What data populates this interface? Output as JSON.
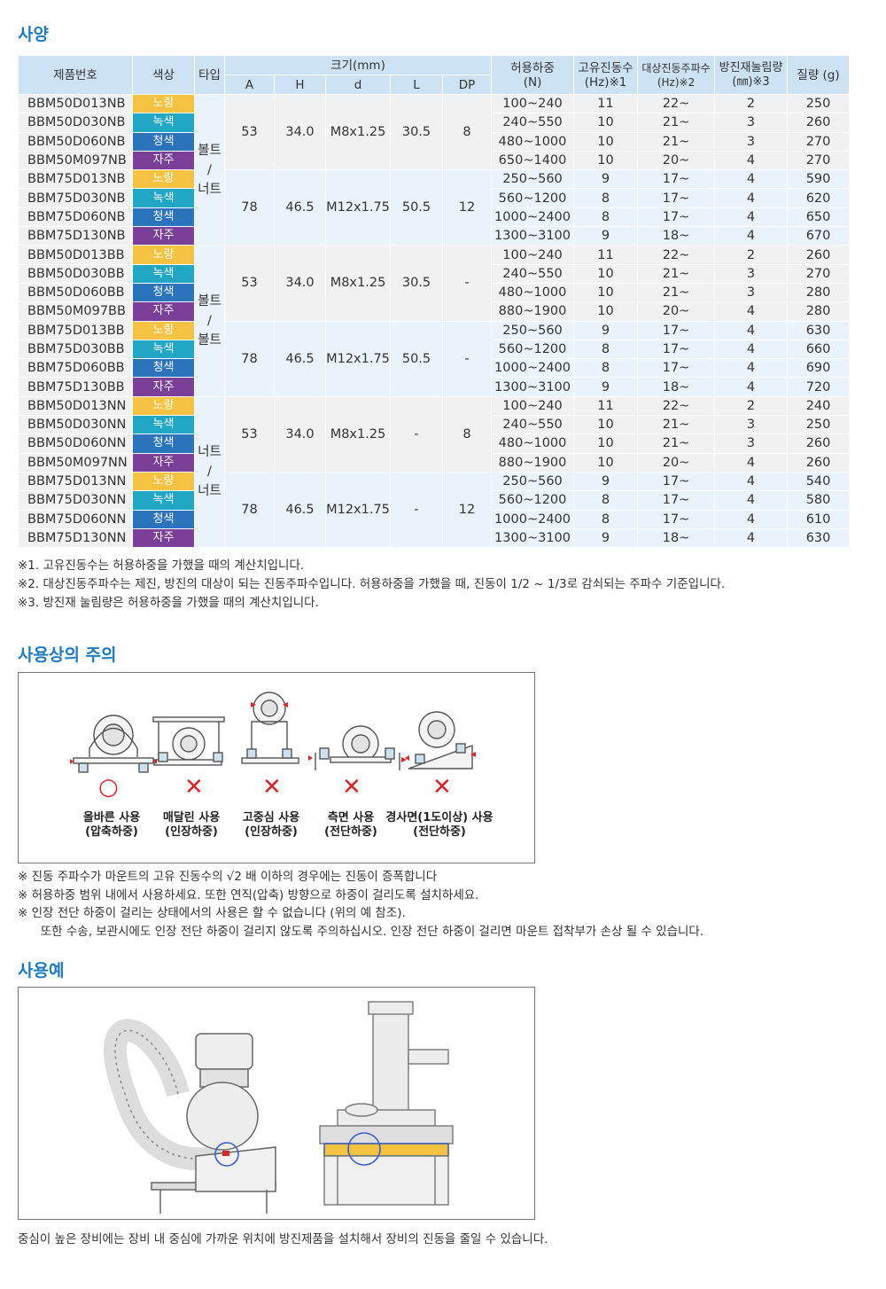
{
  "sections": {
    "spec_title": "사양",
    "caution_title": "사용상의 주의",
    "example_title": "사용예"
  },
  "table": {
    "headers": {
      "part": "제품번호",
      "color": "색상",
      "type": "타입",
      "size": "크기(mm)",
      "a": "A",
      "h": "H",
      "d": "d",
      "l": "L",
      "dp": "DP",
      "load": "허용하중\n(N)",
      "natfreq": "고유진동수\n(Hz)※1",
      "target": "대상진동주파수\n(Hz)※2",
      "defl": "방진재눌림량\n(㎜)※3",
      "mass": "질량 (g)"
    },
    "types": [
      "볼트\n/\n너트",
      "볼트\n/\n볼트",
      "너트\n/\n너트"
    ],
    "groups": [
      {
        "a": "53",
        "h": "34.0",
        "d": "M8x1.25",
        "l": "30.5",
        "dp": "8"
      },
      {
        "a": "78",
        "h": "46.5",
        "d": "M12x1.75",
        "l": "50.5",
        "dp": "12"
      },
      {
        "a": "53",
        "h": "34.0",
        "d": "M8x1.25",
        "l": "30.5",
        "dp": "-"
      },
      {
        "a": "78",
        "h": "46.5",
        "d": "M12x1.75",
        "l": "50.5",
        "dp": "-"
      },
      {
        "a": "53",
        "h": "34.0",
        "d": "M8x1.25",
        "l": "-",
        "dp": "8"
      },
      {
        "a": "78",
        "h": "46.5",
        "d": "M12x1.75",
        "l": "-",
        "dp": "12"
      }
    ],
    "color_labels": {
      "yellow": "노랑",
      "green": "녹색",
      "blue": "청색",
      "purple": "자주"
    },
    "color_hex": {
      "yellow": "#f5c242",
      "green": "#21a6c4",
      "blue": "#2b74bc",
      "purple": "#7a3f97"
    },
    "rows": [
      {
        "pn": "BBM50D013NB",
        "c": "yellow",
        "load": "100~240",
        "nf": "11",
        "tf": "22~",
        "df": "2",
        "m": "250"
      },
      {
        "pn": "BBM50D030NB",
        "c": "green",
        "load": "240~550",
        "nf": "10",
        "tf": "21~",
        "df": "3",
        "m": "260"
      },
      {
        "pn": "BBM50D060NB",
        "c": "blue",
        "load": "480~1000",
        "nf": "10",
        "tf": "21~",
        "df": "3",
        "m": "270"
      },
      {
        "pn": "BBM50M097NB",
        "c": "purple",
        "load": "650~1400",
        "nf": "10",
        "tf": "20~",
        "df": "4",
        "m": "270"
      },
      {
        "pn": "BBM75D013NB",
        "c": "yellow",
        "load": "250~560",
        "nf": "9",
        "tf": "17~",
        "df": "4",
        "m": "590"
      },
      {
        "pn": "BBM75D030NB",
        "c": "green",
        "load": "560~1200",
        "nf": "8",
        "tf": "17~",
        "df": "4",
        "m": "620"
      },
      {
        "pn": "BBM75D060NB",
        "c": "blue",
        "load": "1000~2400",
        "nf": "8",
        "tf": "17~",
        "df": "4",
        "m": "650"
      },
      {
        "pn": "BBM75D130NB",
        "c": "purple",
        "load": "1300~3100",
        "nf": "9",
        "tf": "18~",
        "df": "4",
        "m": "670"
      },
      {
        "pn": "BBM50D013BB",
        "c": "yellow",
        "load": "100~240",
        "nf": "11",
        "tf": "22~",
        "df": "2",
        "m": "260"
      },
      {
        "pn": "BBM50D030BB",
        "c": "green",
        "load": "240~550",
        "nf": "10",
        "tf": "21~",
        "df": "3",
        "m": "270"
      },
      {
        "pn": "BBM50D060BB",
        "c": "blue",
        "load": "480~1000",
        "nf": "10",
        "tf": "21~",
        "df": "3",
        "m": "280"
      },
      {
        "pn": "BBM50M097BB",
        "c": "purple",
        "load": "880~1900",
        "nf": "10",
        "tf": "20~",
        "df": "4",
        "m": "280"
      },
      {
        "pn": "BBM75D013BB",
        "c": "yellow",
        "load": "250~560",
        "nf": "9",
        "tf": "17~",
        "df": "4",
        "m": "630"
      },
      {
        "pn": "BBM75D030BB",
        "c": "green",
        "load": "560~1200",
        "nf": "8",
        "tf": "17~",
        "df": "4",
        "m": "660"
      },
      {
        "pn": "BBM75D060BB",
        "c": "blue",
        "load": "1000~2400",
        "nf": "8",
        "tf": "17~",
        "df": "4",
        "m": "690"
      },
      {
        "pn": "BBM75D130BB",
        "c": "purple",
        "load": "1300~3100",
        "nf": "9",
        "tf": "18~",
        "df": "4",
        "m": "720"
      },
      {
        "pn": "BBM50D013NN",
        "c": "yellow",
        "load": "100~240",
        "nf": "11",
        "tf": "22~",
        "df": "2",
        "m": "240"
      },
      {
        "pn": "BBM50D030NN",
        "c": "green",
        "load": "240~550",
        "nf": "10",
        "tf": "21~",
        "df": "3",
        "m": "250"
      },
      {
        "pn": "BBM50D060NN",
        "c": "blue",
        "load": "480~1000",
        "nf": "10",
        "tf": "21~",
        "df": "3",
        "m": "260"
      },
      {
        "pn": "BBM50M097NN",
        "c": "purple",
        "load": "880~1900",
        "nf": "10",
        "tf": "20~",
        "df": "4",
        "m": "260"
      },
      {
        "pn": "BBM75D013NN",
        "c": "yellow",
        "load": "250~560",
        "nf": "9",
        "tf": "17~",
        "df": "4",
        "m": "540"
      },
      {
        "pn": "BBM75D030NN",
        "c": "green",
        "load": "560~1200",
        "nf": "8",
        "tf": "17~",
        "df": "4",
        "m": "580"
      },
      {
        "pn": "BBM75D060NN",
        "c": "blue",
        "load": "1000~2400",
        "nf": "8",
        "tf": "17~",
        "df": "4",
        "m": "610"
      },
      {
        "pn": "BBM75D130NN",
        "c": "purple",
        "load": "1300~3100",
        "nf": "9",
        "tf": "18~",
        "df": "4",
        "m": "630"
      }
    ]
  },
  "spec_notes": [
    "※1. 고유진동수는 허용하중을 가했을 때의 계산치입니다.",
    "※2. 대상진동주파수는 제진, 방진의 대상이 되는 진동주파수입니다. 허용하중을 가했을 때, 진동이 1/2 ~ 1/3로 감쇠되는 주파수 기준입니다.",
    "※3. 방진재 눌림량은 허용하중을 가했을 때의 계산치입니다."
  ],
  "caution_items": [
    {
      "mark": "○",
      "label": "올바른 사용\n(압축하중)"
    },
    {
      "mark": "✕",
      "label": "매달린 사용\n(인장하중)"
    },
    {
      "mark": "✕",
      "label": "고중심 사용\n(인장하중)"
    },
    {
      "mark": "✕",
      "label": "측면 사용\n(전단하중)"
    },
    {
      "mark": "✕",
      "label": "경사면(1도이상) 사용\n(전단하중)"
    }
  ],
  "caution_notes": [
    "※ 진동 주파수가 마운트의 고유 진동수의 √2 배 이하의 경우에는 진동이 증폭합니다",
    "※ 허용하중 범위 내에서 사용하세요. 또한 연직(압축) 방향으로 하중이 걸리도록 설치하세요.",
    "※ 인장 전단 하중이 걸리는 상태에서의 사용은 할 수 없습니다 (위의 예 참조).",
    "      또한 수송, 보관시에도 인장 전단 하중이 걸리지 않도록 주의하십시오. 인장 전단 하중이 걸리면 마운트 접착부가 손상 될 수 있습니다."
  ],
  "example_caption": "중심이 높은 장비에는 장비 내 중심에 가까운 위치에 방진제품을 설치해서 장비의 진동을 줄일 수 있습니다.",
  "colors": {
    "accent": "#1f7ac0",
    "header_bg": "#cde3f4",
    "ok": "#d9262c",
    "ng": "#d9262c"
  }
}
